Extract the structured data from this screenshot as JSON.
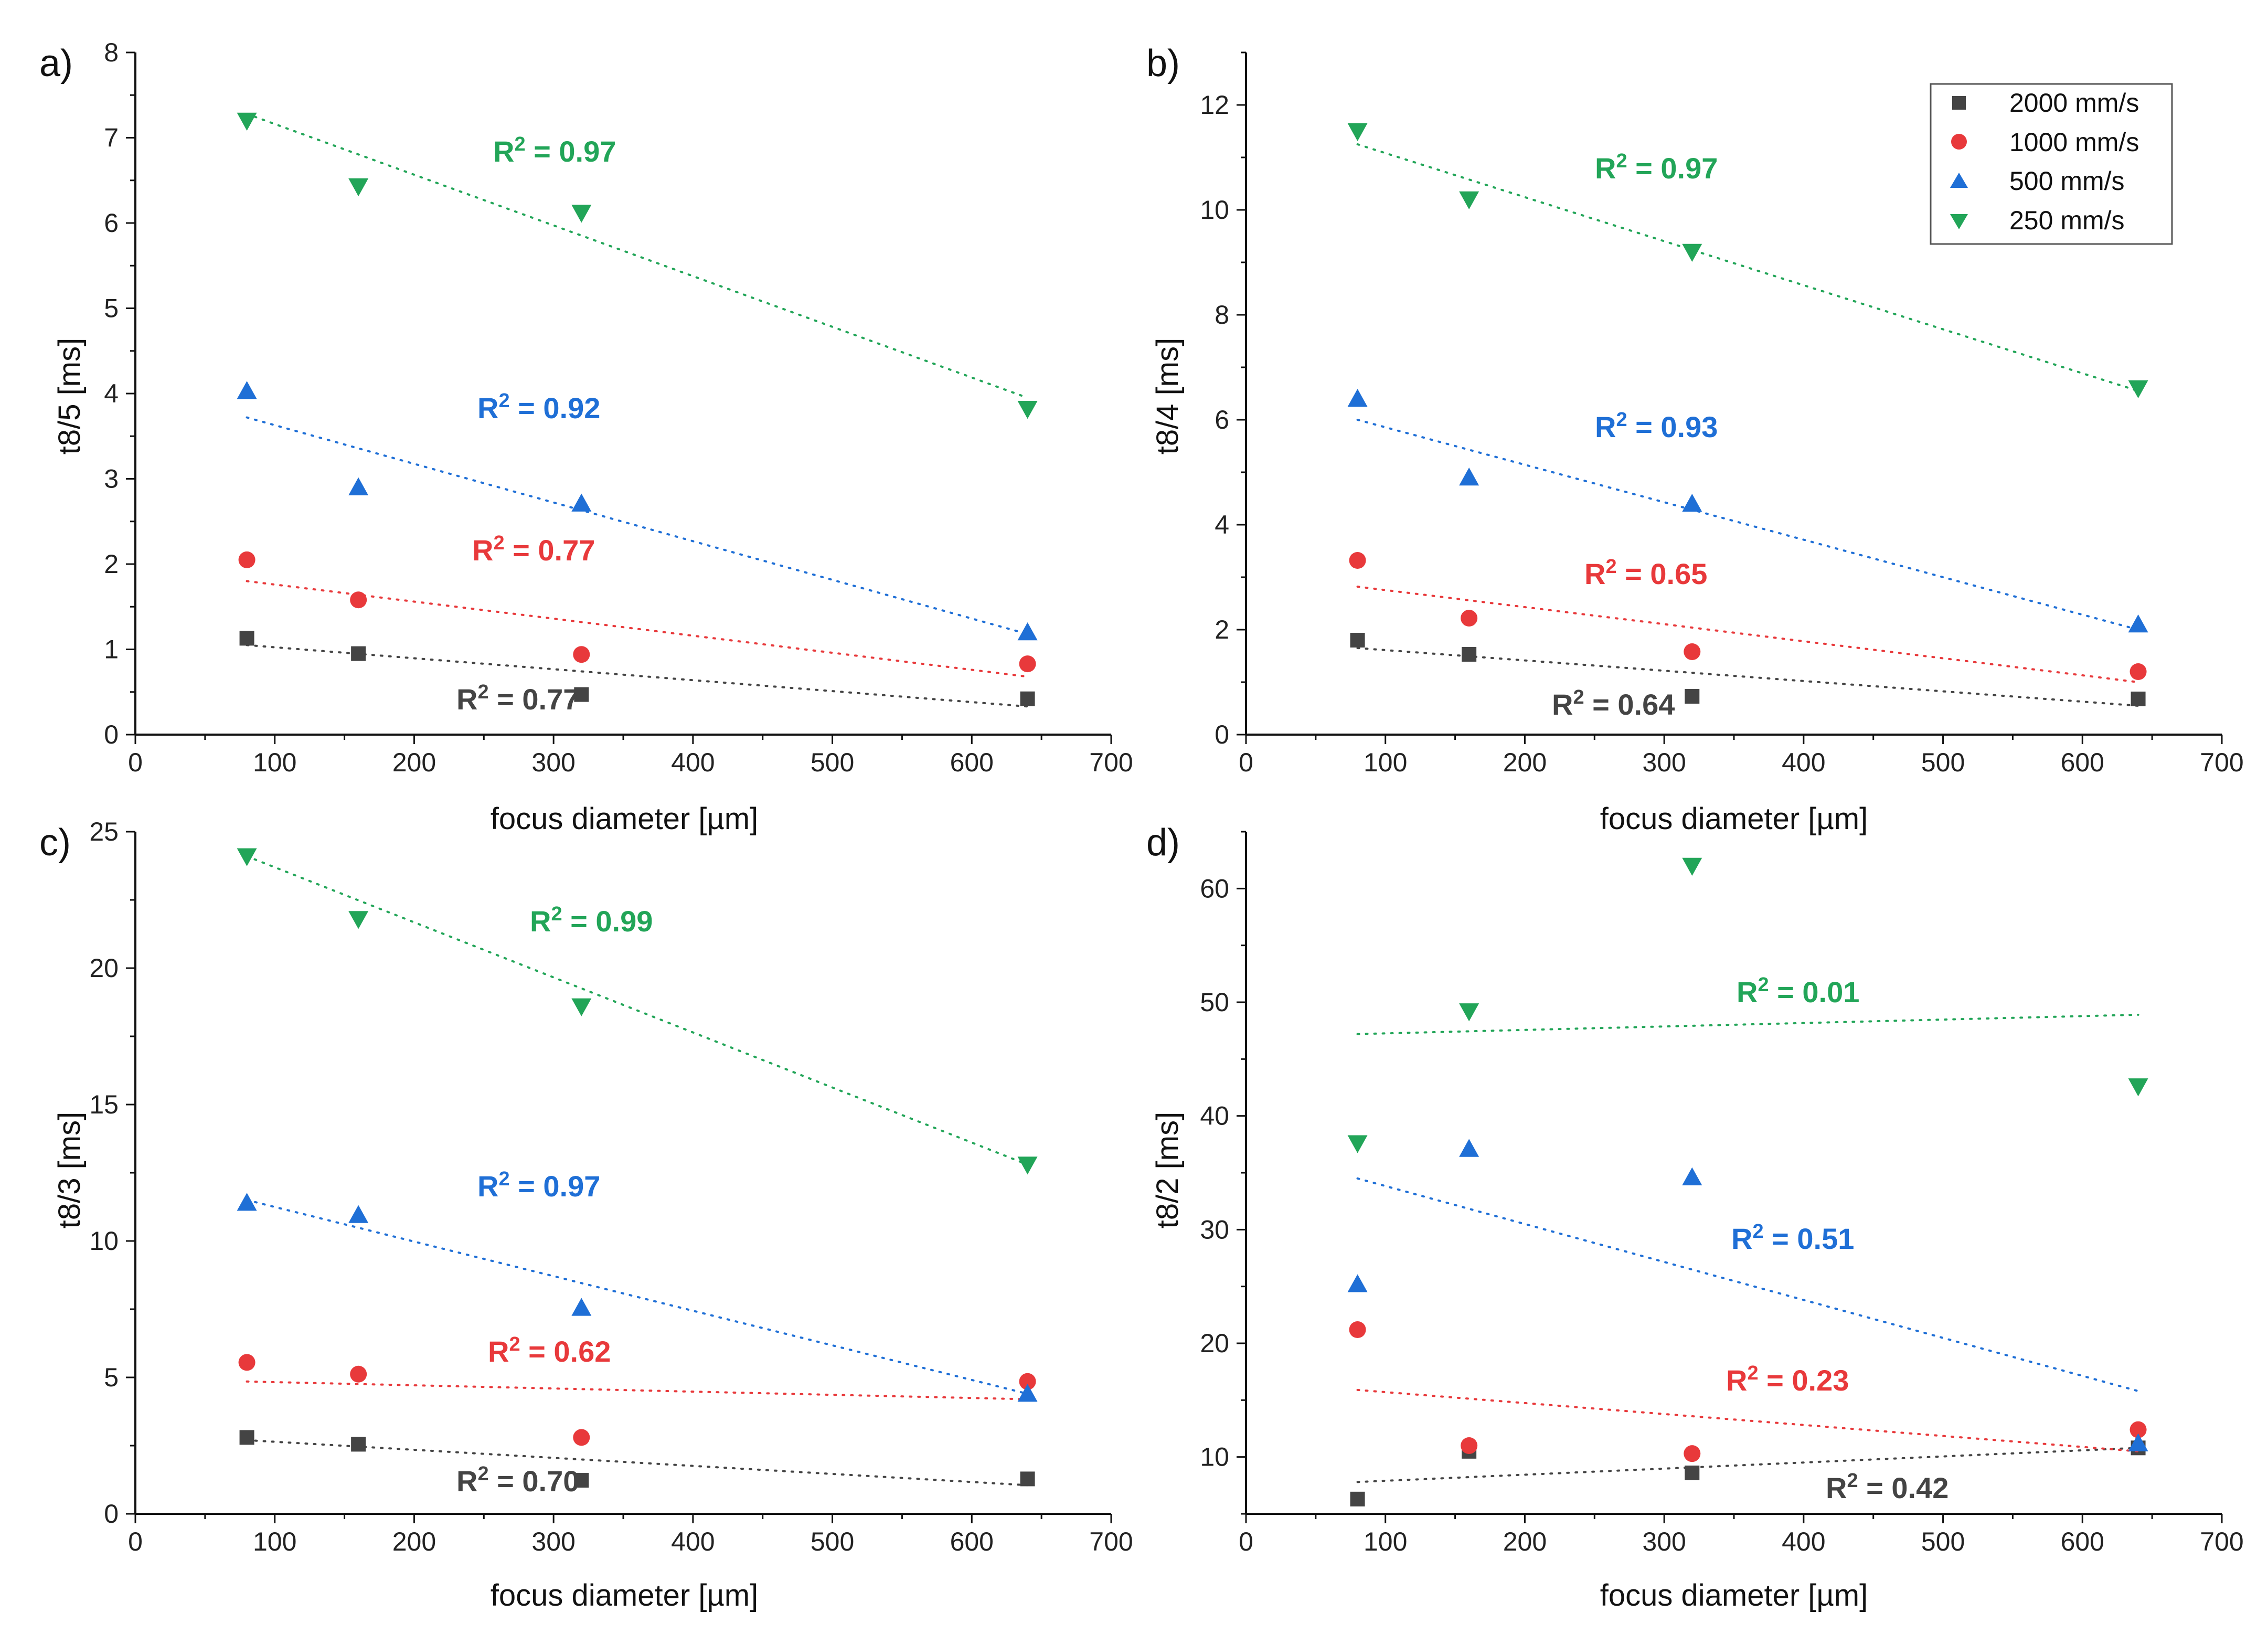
{
  "series_styles": [
    {
      "name": "2000 mm/s",
      "color": "#444444",
      "marker": "square"
    },
    {
      "name": "1000 mm/s",
      "color": "#e8393b",
      "marker": "circle"
    },
    {
      "name": "500 mm/s",
      "color": "#1f6fd6",
      "marker": "triangle-up"
    },
    {
      "name": "250 mm/s",
      "color": "#22a558",
      "marker": "triangle-down"
    }
  ],
  "legend": {
    "placement": "top-right of panel b",
    "items": [
      "2000 mm/s",
      "1000 mm/s",
      "500 mm/s",
      "250 mm/s"
    ]
  },
  "chart_data": [
    {
      "panel": "a)",
      "type": "scatter",
      "xlabel": "focus diameter [µm]",
      "ylabel": "t8/5 [ms]",
      "xlim": [
        0,
        700
      ],
      "ylim": [
        0,
        8
      ],
      "xticks": [
        "0",
        "100",
        "200",
        "300",
        "400",
        "500",
        "600",
        "700"
      ],
      "yticks": [
        "0",
        "1",
        "2",
        "3",
        "4",
        "5",
        "6",
        "7",
        "8"
      ],
      "x": [
        80,
        160,
        320,
        640
      ],
      "series": [
        {
          "name": "2000 mm/s",
          "values": [
            1.13,
            0.95,
            0.47,
            0.42
          ],
          "fit": [
            1.05,
            0.33
          ],
          "r2": "R² = 0.77"
        },
        {
          "name": "1000 mm/s",
          "values": [
            2.05,
            1.58,
            0.94,
            0.83
          ],
          "fit": [
            1.8,
            0.68
          ],
          "r2": "R² = 0.77"
        },
        {
          "name": "500 mm/s",
          "values": [
            4.03,
            2.9,
            2.71,
            1.2
          ],
          "fit": [
            3.72,
            1.18
          ],
          "r2": "R² = 0.92"
        },
        {
          "name": "250 mm/s",
          "values": [
            7.2,
            6.43,
            6.12,
            3.82
          ],
          "fit": [
            7.28,
            3.95
          ],
          "r2": "R² = 0.97"
        }
      ]
    },
    {
      "panel": "b)",
      "type": "scatter",
      "xlabel": "focus diameter [µm]",
      "ylabel": "t8/4 [ms]",
      "xlim": [
        0,
        700
      ],
      "ylim": [
        0,
        13
      ],
      "xticks": [
        "0",
        "100",
        "200",
        "300",
        "400",
        "500",
        "600",
        "700"
      ],
      "yticks": [
        "0",
        "2",
        "4",
        "6",
        "8",
        "10",
        "12"
      ],
      "x": [
        80,
        160,
        320,
        640
      ],
      "series": [
        {
          "name": "2000 mm/s",
          "values": [
            1.8,
            1.53,
            0.73,
            0.68
          ],
          "fit": [
            1.65,
            0.55
          ],
          "r2": "R² = 0.64"
        },
        {
          "name": "1000 mm/s",
          "values": [
            3.32,
            2.22,
            1.58,
            1.2
          ],
          "fit": [
            2.82,
            1.0
          ],
          "r2": "R² = 0.65"
        },
        {
          "name": "500 mm/s",
          "values": [
            6.4,
            4.9,
            4.4,
            2.1
          ],
          "fit": [
            6.0,
            2.0
          ],
          "r2": "R² = 0.93"
        },
        {
          "name": "250 mm/s",
          "values": [
            11.5,
            10.2,
            9.2,
            6.6
          ],
          "fit": [
            11.25,
            6.55
          ],
          "r2": "R² = 0.97"
        }
      ]
    },
    {
      "panel": "c)",
      "type": "scatter",
      "xlabel": "focus diameter [µm]",
      "ylabel": "t8/3 [ms]",
      "xlim": [
        0,
        700
      ],
      "ylim": [
        0,
        25
      ],
      "xticks": [
        "0",
        "100",
        "200",
        "300",
        "400",
        "500",
        "600",
        "700"
      ],
      "yticks": [
        "0",
        "5",
        "10",
        "15",
        "20",
        "25"
      ],
      "x": [
        80,
        160,
        320,
        640
      ],
      "series": [
        {
          "name": "2000 mm/s",
          "values": [
            2.8,
            2.55,
            1.23,
            1.28
          ],
          "fit": [
            2.7,
            1.05
          ],
          "r2": "R² = 0.70"
        },
        {
          "name": "1000 mm/s",
          "values": [
            5.55,
            5.12,
            2.8,
            4.85
          ],
          "fit": [
            4.85,
            4.2
          ],
          "r2": "R² = 0.62"
        },
        {
          "name": "500 mm/s",
          "values": [
            11.4,
            10.95,
            7.55,
            4.4
          ],
          "fit": [
            11.5,
            4.4
          ],
          "r2": "R² = 0.97"
        },
        {
          "name": "250 mm/s",
          "values": [
            24.1,
            21.8,
            18.6,
            12.8
          ],
          "fit": [
            24.1,
            12.8
          ],
          "r2": "R² = 0.99"
        }
      ]
    },
    {
      "panel": "d)",
      "type": "scatter",
      "xlabel": "focus diameter [µm]",
      "ylabel": "t8/2 [ms]",
      "xlim": [
        0,
        700
      ],
      "ylim": [
        5,
        65
      ],
      "xticks": [
        "0",
        "100",
        "200",
        "300",
        "400",
        "500",
        "600",
        "700"
      ],
      "yticks": [
        "10",
        "20",
        "30",
        "40",
        "50",
        "60"
      ],
      "x": [
        80,
        160,
        320,
        640
      ],
      "series": [
        {
          "name": "2000 mm/s",
          "values": [
            6.3,
            10.5,
            8.6,
            10.8
          ],
          "fit": [
            7.8,
            10.8
          ],
          "r2": "R² = 0.42"
        },
        {
          "name": "1000 mm/s",
          "values": [
            21.2,
            11.0,
            10.3,
            12.4
          ],
          "fit": [
            15.9,
            10.5
          ],
          "r2": "R² = 0.23"
        },
        {
          "name": "500 mm/s",
          "values": [
            25.2,
            37.1,
            34.6,
            11.2
          ],
          "fit": [
            34.5,
            15.8
          ],
          "r2": "R² = 0.51"
        },
        {
          "name": "250 mm/s",
          "values": [
            37.6,
            49.2,
            62.0,
            42.6
          ],
          "fit": [
            47.2,
            48.9
          ],
          "r2": "R² = 0.01"
        }
      ]
    }
  ]
}
